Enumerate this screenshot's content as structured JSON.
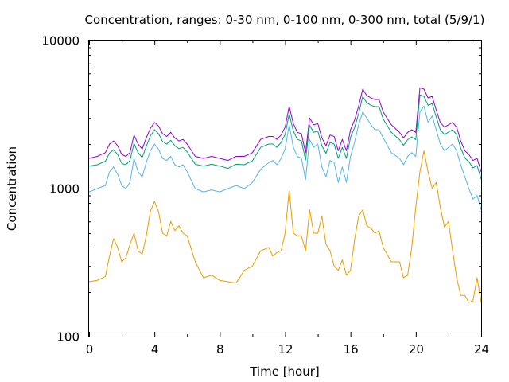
{
  "chart_data": {
    "type": "line",
    "title": "Concentration, ranges: 0-30 nm, 0-100 nm, 0-300 nm, total (5/9/1)",
    "xlabel": "Time [hour]",
    "ylabel": "Concentration",
    "xlim": [
      0,
      24
    ],
    "ylim": [
      100,
      10000
    ],
    "yscale": "log",
    "grid": false,
    "legend": "none",
    "x_ticks": [
      "0",
      "4",
      "8",
      "12",
      "16",
      "20",
      "24"
    ],
    "y_ticks": [
      "100",
      "1000",
      "10000"
    ],
    "x": [
      0,
      0.5,
      1,
      1.25,
      1.5,
      1.75,
      2,
      2.25,
      2.5,
      2.75,
      3,
      3.25,
      3.5,
      3.75,
      4,
      4.25,
      4.5,
      4.75,
      5,
      5.25,
      5.5,
      5.75,
      6,
      6.5,
      7,
      7.5,
      8,
      8.5,
      9,
      9.5,
      10,
      10.5,
      11,
      11.25,
      11.5,
      11.75,
      12,
      12.25,
      12.5,
      12.75,
      13,
      13.25,
      13.5,
      13.75,
      14,
      14.25,
      14.5,
      14.75,
      15,
      15.25,
      15.5,
      15.75,
      16,
      16.25,
      16.5,
      16.75,
      17,
      17.25,
      17.5,
      17.75,
      18,
      18.5,
      19,
      19.25,
      19.5,
      19.75,
      20,
      20.25,
      20.5,
      20.75,
      21,
      21.25,
      21.5,
      21.75,
      22,
      22.25,
      22.5,
      22.75,
      23,
      23.25,
      23.5,
      23.75,
      24
    ],
    "series": [
      {
        "color": "#9400d3",
        "values": [
          1600,
          1650,
          1750,
          2000,
          2100,
          1950,
          1700,
          1650,
          1750,
          2300,
          2000,
          1850,
          2200,
          2550,
          2800,
          2650,
          2350,
          2250,
          2400,
          2200,
          2100,
          2150,
          2000,
          1650,
          1600,
          1650,
          1600,
          1550,
          1650,
          1650,
          1750,
          2150,
          2250,
          2250,
          2150,
          2300,
          2600,
          3600,
          2750,
          2400,
          2350,
          1750,
          3000,
          2700,
          2750,
          2200,
          1950,
          2300,
          2250,
          1800,
          2150,
          1800,
          2500,
          2900,
          3600,
          4700,
          4250,
          4100,
          4000,
          4000,
          3300,
          2700,
          2400,
          2200,
          2400,
          2500,
          2400,
          4800,
          4700,
          4100,
          4200,
          3400,
          2800,
          2600,
          2700,
          2800,
          2600,
          2100,
          1800,
          1700,
          1550,
          1600,
          1300
        ]
      },
      {
        "color": "#009e73",
        "values": [
          1420,
          1450,
          1530,
          1740,
          1830,
          1700,
          1480,
          1450,
          1550,
          2020,
          1750,
          1620,
          1930,
          2260,
          2500,
          2350,
          2080,
          2000,
          2120,
          1950,
          1860,
          1900,
          1770,
          1460,
          1420,
          1460,
          1420,
          1370,
          1460,
          1450,
          1540,
          1900,
          2000,
          2000,
          1900,
          2050,
          2320,
          3200,
          2450,
          2150,
          2100,
          1560,
          2680,
          2400,
          2450,
          1950,
          1730,
          2050,
          2000,
          1600,
          1900,
          1600,
          2220,
          2580,
          3200,
          4200,
          3800,
          3660,
          3580,
          3580,
          2950,
          2400,
          2140,
          1960,
          2140,
          2230,
          2140,
          4300,
          4200,
          3650,
          3750,
          3050,
          2500,
          2320,
          2410,
          2500,
          2320,
          1880,
          1610,
          1520,
          1380,
          1430,
          1160
        ]
      },
      {
        "color": "#56b4e9",
        "values": [
          950,
          1000,
          1050,
          1300,
          1400,
          1250,
          1050,
          1000,
          1100,
          1600,
          1300,
          1200,
          1500,
          1800,
          2000,
          1850,
          1600,
          1550,
          1650,
          1450,
          1400,
          1450,
          1300,
          1000,
          950,
          980,
          950,
          1000,
          1050,
          1000,
          1100,
          1350,
          1500,
          1550,
          1450,
          1600,
          1850,
          2700,
          1900,
          1650,
          1600,
          1150,
          2150,
          1900,
          2000,
          1400,
          1200,
          1550,
          1500,
          1100,
          1400,
          1100,
          1650,
          2050,
          2700,
          3300,
          3000,
          2700,
          2500,
          2500,
          2200,
          1750,
          1600,
          1450,
          1650,
          1750,
          1650,
          3300,
          3600,
          2800,
          3100,
          2500,
          2000,
          1800,
          1900,
          2000,
          1800,
          1450,
          1200,
          1000,
          850,
          900,
          720
        ]
      },
      {
        "color": "#e69f00",
        "values": [
          235,
          240,
          255,
          350,
          460,
          400,
          320,
          340,
          420,
          500,
          380,
          360,
          480,
          700,
          820,
          700,
          500,
          480,
          600,
          520,
          560,
          500,
          480,
          320,
          250,
          260,
          240,
          235,
          230,
          280,
          300,
          380,
          400,
          350,
          370,
          380,
          500,
          980,
          500,
          480,
          480,
          380,
          720,
          500,
          500,
          650,
          420,
          380,
          300,
          280,
          330,
          260,
          280,
          450,
          650,
          720,
          560,
          540,
          500,
          520,
          400,
          320,
          320,
          250,
          260,
          400,
          750,
          1300,
          1800,
          1300,
          1000,
          1100,
          750,
          550,
          600,
          380,
          250,
          190,
          190,
          170,
          175,
          250,
          170
        ]
      }
    ]
  }
}
